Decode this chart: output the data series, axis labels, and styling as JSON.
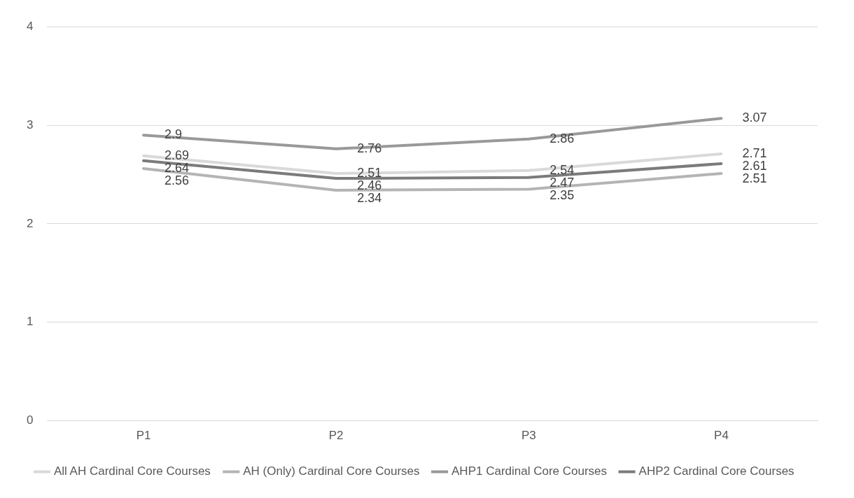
{
  "chart_data": {
    "type": "line",
    "categories": [
      "P1",
      "P2",
      "P3",
      "P4"
    ],
    "series": [
      {
        "name": "All AH Cardinal Core Courses",
        "color": "#d9d9d9",
        "values": [
          2.69,
          2.51,
          2.54,
          2.71
        ]
      },
      {
        "name": "AH (Only) Cardinal Core Courses",
        "color": "#b4b4b4",
        "values": [
          2.56,
          2.34,
          2.35,
          2.51
        ]
      },
      {
        "name": "AHP1 Cardinal Core Courses",
        "color": "#999999",
        "values": [
          2.9,
          2.76,
          2.86,
          3.07
        ]
      },
      {
        "name": "AHP2 Cardinal Core Courses",
        "color": "#7b7b7b",
        "values": [
          2.64,
          2.46,
          2.47,
          2.61
        ]
      }
    ],
    "ylim": [
      0,
      4
    ],
    "yticks": [
      0,
      1,
      2,
      3,
      4
    ],
    "grid": "y",
    "legend": "bottom",
    "marker": "none",
    "line_style": "solid",
    "data_labels": true
  }
}
